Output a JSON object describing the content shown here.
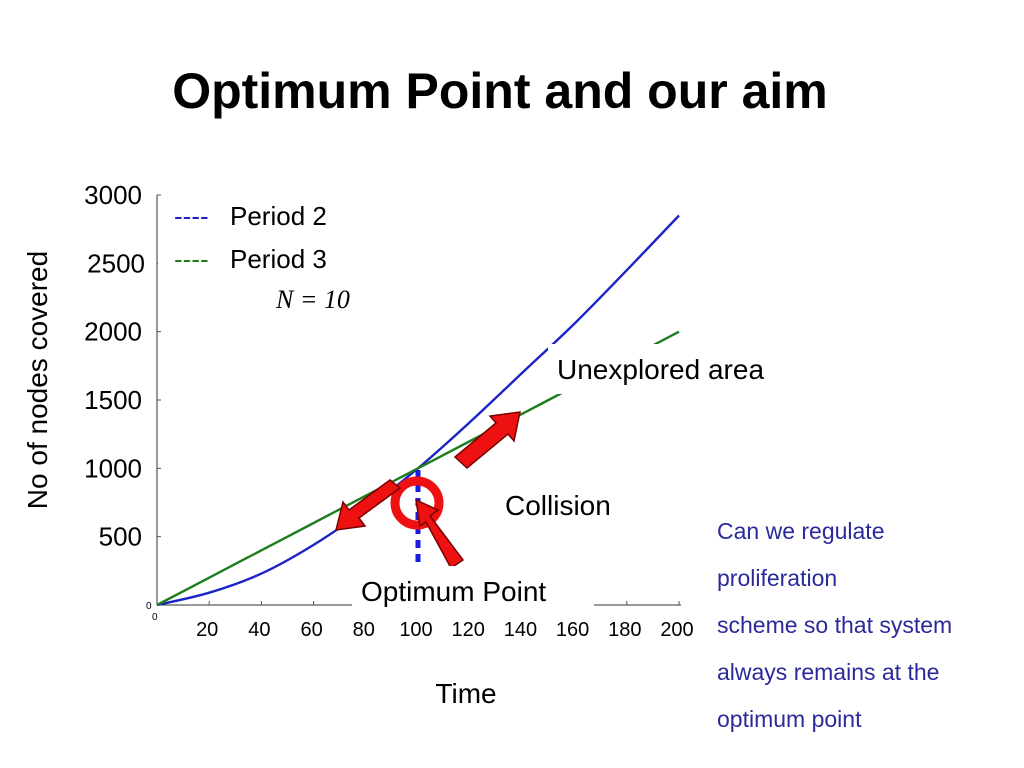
{
  "slide": {
    "title": "Optimum Point and our aim",
    "question_lines": [
      "Can we regulate",
      "proliferation",
      "scheme so that system",
      "always remains at the",
      "optimum point"
    ]
  },
  "chart_data": {
    "type": "line",
    "xlabel": "Time",
    "ylabel": "No of nodes covered",
    "x_ticks": [
      20,
      40,
      60,
      80,
      100,
      120,
      140,
      160,
      180,
      200
    ],
    "y_ticks": [
      500,
      1000,
      1500,
      2000,
      2500,
      3000
    ],
    "xlim": [
      0,
      200
    ],
    "ylim": [
      0,
      3000
    ],
    "origin_labels": [
      "0",
      "0"
    ],
    "grid": false,
    "legend": {
      "position": "top-left",
      "dash": "----"
    },
    "annotation_n": "N  =  10",
    "series": [
      {
        "name": "Period 2",
        "color": "#1c24c8",
        "x": [
          0,
          20,
          40,
          60,
          80,
          100,
          120,
          140,
          160,
          180,
          200
        ],
        "y": [
          0,
          90,
          230,
          440,
          700,
          1000,
          1340,
          1700,
          2060,
          2450,
          2850
        ]
      },
      {
        "name": "Period 3",
        "color": "#1e7e1e",
        "x": [
          0,
          20,
          40,
          60,
          80,
          100,
          120,
          140,
          160,
          180,
          200
        ],
        "y": [
          0,
          200,
          400,
          600,
          800,
          1000,
          1200,
          1400,
          1600,
          1800,
          2000
        ]
      }
    ],
    "annotations": {
      "unexplored": "Unexplored area",
      "collision": "Collision",
      "optimum": "Optimum Point"
    },
    "optimum_x": 100,
    "colors": {
      "arrow": "#ee1111",
      "circle": "#ee1111",
      "marker_line": "#1a1ae0"
    }
  }
}
